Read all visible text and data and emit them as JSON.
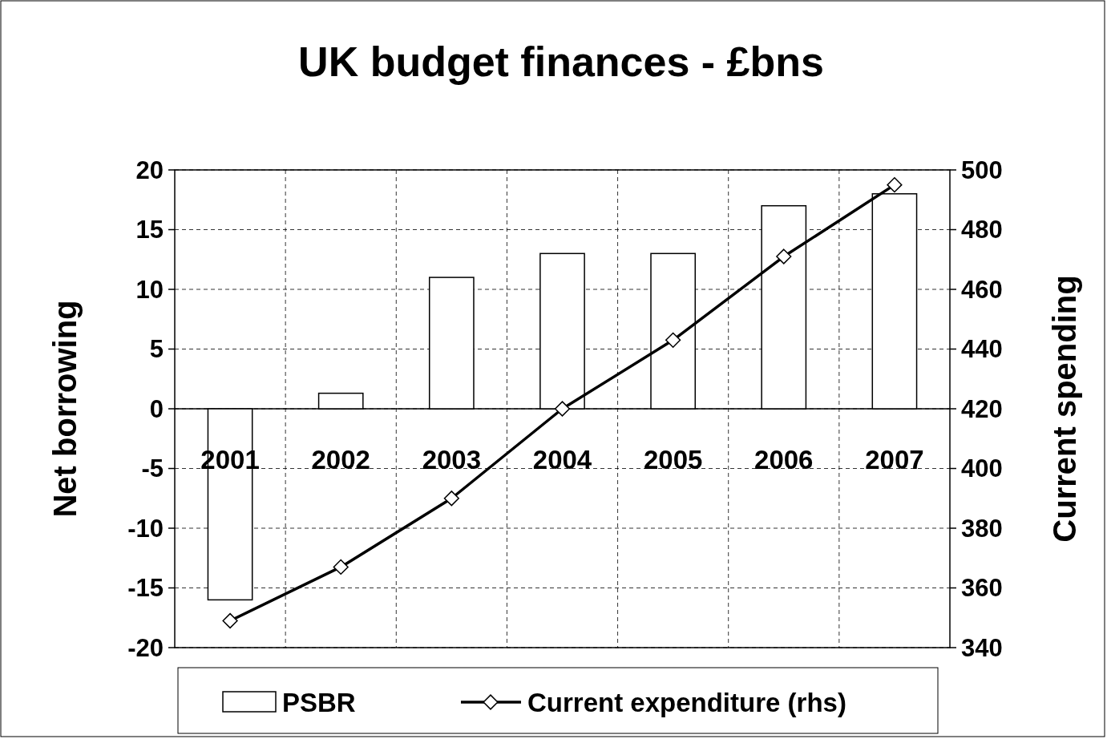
{
  "chart_data": {
    "type": "bar",
    "title": "UK budget finances - £bns",
    "ylabel": "Net borrowing",
    "y2label": "Current spending",
    "categories": [
      "2001",
      "2002",
      "2003",
      "2004",
      "2005",
      "2006",
      "2007"
    ],
    "series": [
      {
        "name": "PSBR",
        "color": "#ffffff",
        "values": [
          -16,
          1.3,
          11,
          13,
          13,
          17,
          18
        ]
      },
      {
        "name": "Current expenditure (rhs)",
        "type": "line",
        "axis": "y2",
        "color": "#000000",
        "marker": "diamond",
        "values": [
          349,
          367,
          390,
          420,
          443,
          471,
          495
        ]
      }
    ],
    "ylim": [
      -20,
      20
    ],
    "yticks": [
      -20,
      -15,
      -10,
      -5,
      0,
      5,
      10,
      15,
      20
    ],
    "y2lim": [
      340,
      500
    ],
    "y2ticks": [
      340,
      360,
      380,
      400,
      420,
      440,
      460,
      480,
      500
    ],
    "grid": true,
    "legend": "bottom"
  }
}
